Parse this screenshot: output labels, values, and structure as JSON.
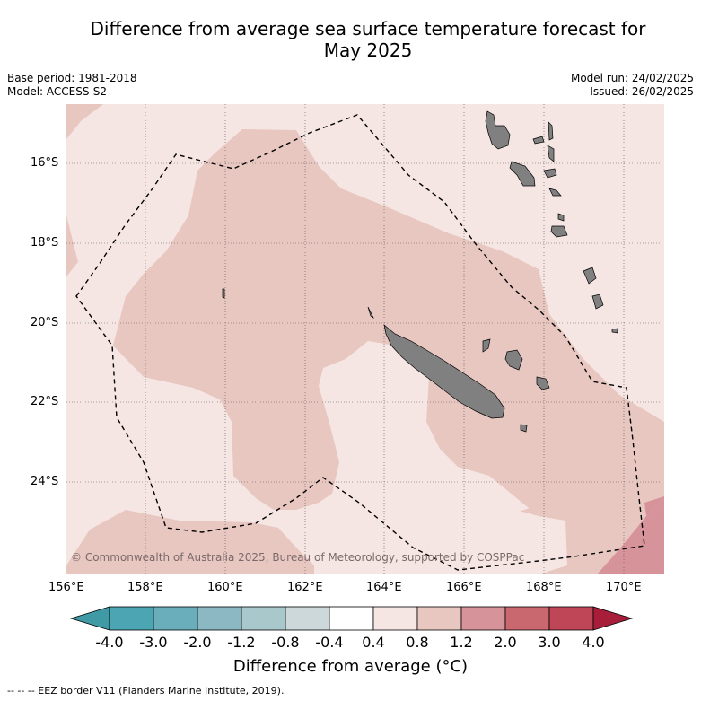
{
  "title_line1": "Difference from average sea surface temperature forecast for",
  "title_line2": "May 2025",
  "base_period": "Base period: 1981-2018",
  "model": "Model: ACCESS-S2",
  "model_run": "Model run: 24/02/2025",
  "issued": "Issued: 26/02/2025",
  "copyright": "© Commonwealth of Australia 2025, Bureau of Meteorology, supported by COSPPac",
  "footnote": "-- -- -- EEZ border V11 (Flanders Marine Institute, 2019).",
  "legend_title": "Difference from average (°C)",
  "lon_labels": [
    "156°E",
    "158°E",
    "160°E",
    "162°E",
    "164°E",
    "166°E",
    "168°E",
    "170°E"
  ],
  "lat_labels": [
    "16°S",
    "18°S",
    "20°S",
    "22°S",
    "24°S"
  ],
  "colorbar_labels": [
    "-4.0",
    "-3.0",
    "-2.0",
    "-1.2",
    "-0.8",
    "-0.4",
    "0.4",
    "0.8",
    "1.2",
    "2.0",
    "3.0",
    "4.0"
  ],
  "colorbar_colors": [
    "#3f9aa6",
    "#4ca5b2",
    "#6aaebc",
    "#8cb8c4",
    "#a9c8cc",
    "#cdd8da",
    "#ffffff",
    "#f5e6e4",
    "#e8c7c1",
    "#d6939a",
    "#c9696f",
    "#be4656",
    "#a81e3a"
  ],
  "colors": {
    "land": "#808080",
    "category_0_4_0_8": "#f5e6e4",
    "category_0_8_1_2": "#e8c7c1",
    "category_1_2_2_0": "#d6939a"
  }
}
